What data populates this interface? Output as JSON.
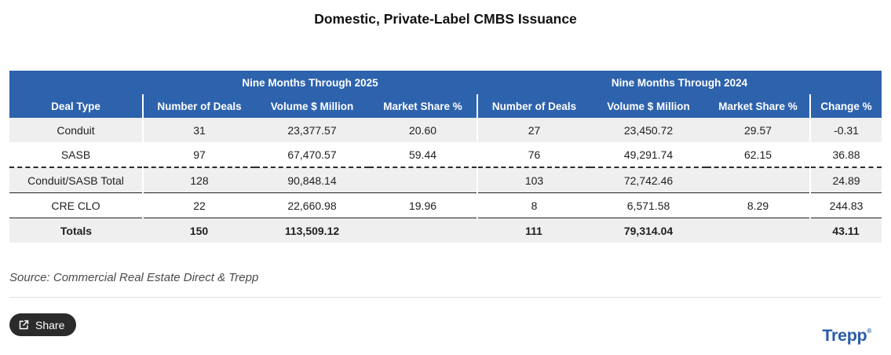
{
  "title": "Domestic, Private-Label CMBS Issuance",
  "table": {
    "group_headers": [
      {
        "label": "",
        "colspan": 1
      },
      {
        "label": "Nine Months Through 2025",
        "colspan": 3
      },
      {
        "label": "Nine Months Through 2024",
        "colspan": 4
      }
    ],
    "columns": [
      "Deal Type",
      "Number of Deals",
      "Volume $ Million",
      "Market Share %",
      "Number of Deals",
      "Volume $ Million",
      "Market Share %",
      "Change %"
    ],
    "rows": [
      {
        "cells": [
          "Conduit",
          "31",
          "23,377.57",
          "20.60",
          "27",
          "23,450.72",
          "29.57",
          "-0.31"
        ],
        "shaded": true,
        "bold": false,
        "divider_top": "none"
      },
      {
        "cells": [
          "SASB",
          "97",
          "67,470.57",
          "59.44",
          "76",
          "49,291.74",
          "62.15",
          "36.88"
        ],
        "shaded": false,
        "bold": false,
        "divider_top": "none"
      },
      {
        "cells": [
          "Conduit/SASB Total",
          "128",
          "90,848.14",
          "",
          "103",
          "72,742.46",
          "",
          "24.89"
        ],
        "shaded": true,
        "bold": false,
        "divider_top": "dashed"
      },
      {
        "cells": [
          "CRE CLO",
          "22",
          "22,660.98",
          "19.96",
          "8",
          "6,571.58",
          "8.29",
          "244.83"
        ],
        "shaded": false,
        "bold": false,
        "divider_top": "solid"
      },
      {
        "cells": [
          "Totals",
          "150",
          "113,509.12",
          "",
          "111",
          "79,314.04",
          "",
          "43.11"
        ],
        "shaded": true,
        "bold": true,
        "divider_top": "solid"
      }
    ]
  },
  "source_note": "Source: Commercial Real Estate Direct & Trepp",
  "share": {
    "label": "Share"
  },
  "branding": {
    "logo_text": "Trepp",
    "registered_mark": "®"
  },
  "colors": {
    "header_blue": "#2d62ad",
    "row_shade": "#efefef",
    "share_button_bg": "#2b2b2b",
    "logo_blue": "#2b5caa"
  }
}
